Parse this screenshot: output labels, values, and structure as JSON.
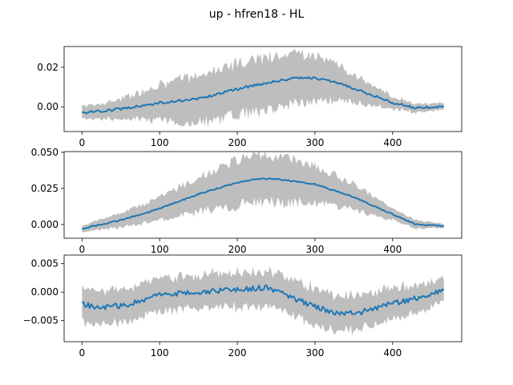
{
  "figure": {
    "suptitle": "up - hfren18 - HL",
    "colors": {
      "line": "#1f77b4",
      "band": "#bebebe"
    }
  },
  "chart_data": [
    {
      "type": "line",
      "x_range": [
        0,
        466
      ],
      "xlim": [
        -23,
        489
      ],
      "ylim": [
        -0.0125,
        0.0305
      ],
      "xticks": [
        0,
        100,
        200,
        300,
        400
      ],
      "yticks": [
        0.0,
        0.02
      ],
      "ytick_labels": [
        "0.00",
        "0.02"
      ],
      "xtick_labels": [
        "0",
        "100",
        "200",
        "300",
        "400"
      ],
      "series": [
        {
          "mean_knots": [
            [
              0,
              -0.003
            ],
            [
              30,
              -0.002
            ],
            [
              60,
              -0.0005
            ],
            [
              100,
              0.002
            ],
            [
              150,
              0.004
            ],
            [
              200,
              0.009
            ],
            [
              250,
              0.013
            ],
            [
              280,
              0.0148
            ],
            [
              300,
              0.0145
            ],
            [
              330,
              0.012
            ],
            [
              360,
              0.008
            ],
            [
              400,
              0.002
            ],
            [
              430,
              -0.0005
            ],
            [
              466,
              0.0
            ]
          ],
          "spread_knots": [
            [
              0,
              0.003
            ],
            [
              50,
              0.005
            ],
            [
              100,
              0.009
            ],
            [
              150,
              0.012
            ],
            [
              200,
              0.013
            ],
            [
              250,
              0.0135
            ],
            [
              300,
              0.0115
            ],
            [
              350,
              0.007
            ],
            [
              400,
              0.003
            ],
            [
              466,
              0.0015
            ]
          ],
          "noise": 0.0012
        }
      ]
    },
    {
      "type": "line",
      "x_range": [
        0,
        466
      ],
      "xlim": [
        -23,
        489
      ],
      "ylim": [
        -0.0095,
        0.0505
      ],
      "xticks": [
        0,
        100,
        200,
        300,
        400
      ],
      "yticks": [
        0.0,
        0.025,
        0.05
      ],
      "ytick_labels": [
        "0.000",
        "0.025",
        "0.050"
      ],
      "xtick_labels": [
        "0",
        "100",
        "200",
        "300",
        "400"
      ],
      "series": [
        {
          "mean_knots": [
            [
              0,
              -0.003
            ],
            [
              50,
              0.003
            ],
            [
              100,
              0.011
            ],
            [
              150,
              0.021
            ],
            [
              200,
              0.029
            ],
            [
              225,
              0.0318
            ],
            [
              250,
              0.0315
            ],
            [
              300,
              0.028
            ],
            [
              350,
              0.019
            ],
            [
              400,
              0.007
            ],
            [
              430,
              0.0
            ],
            [
              466,
              -0.001
            ]
          ],
          "spread_knots": [
            [
              0,
              0.002
            ],
            [
              50,
              0.005
            ],
            [
              100,
              0.008
            ],
            [
              150,
              0.012
            ],
            [
              200,
              0.016
            ],
            [
              250,
              0.016
            ],
            [
              300,
              0.013
            ],
            [
              350,
              0.009
            ],
            [
              400,
              0.004
            ],
            [
              466,
              0.0015
            ]
          ],
          "noise": 0.0008
        }
      ]
    },
    {
      "type": "line",
      "x_range": [
        0,
        466
      ],
      "xlim": [
        -23,
        489
      ],
      "ylim": [
        -0.0087,
        0.0065
      ],
      "xticks": [
        0,
        100,
        200,
        300,
        400
      ],
      "yticks": [
        -0.005,
        0.0,
        0.005
      ],
      "ytick_labels": [
        "−0.005",
        "0.000",
        "0.005"
      ],
      "xtick_labels": [
        "0",
        "100",
        "200",
        "300",
        "400"
      ],
      "series": [
        {
          "mean_knots": [
            [
              0,
              -0.002
            ],
            [
              20,
              -0.0028
            ],
            [
              60,
              -0.0022
            ],
            [
              100,
              -0.0005
            ],
            [
              150,
              0.0
            ],
            [
              200,
              0.0005
            ],
            [
              240,
              0.0008
            ],
            [
              270,
              -0.001
            ],
            [
              300,
              -0.0025
            ],
            [
              330,
              -0.0038
            ],
            [
              360,
              -0.0035
            ],
            [
              400,
              -0.002
            ],
            [
              440,
              -0.0008
            ],
            [
              466,
              0.0004
            ]
          ],
          "spread_knots": [
            [
              0,
              0.003
            ],
            [
              100,
              0.0028
            ],
            [
              200,
              0.003
            ],
            [
              300,
              0.0032
            ],
            [
              400,
              0.0028
            ],
            [
              466,
              0.002
            ]
          ],
          "noise": 0.0009
        }
      ]
    }
  ]
}
